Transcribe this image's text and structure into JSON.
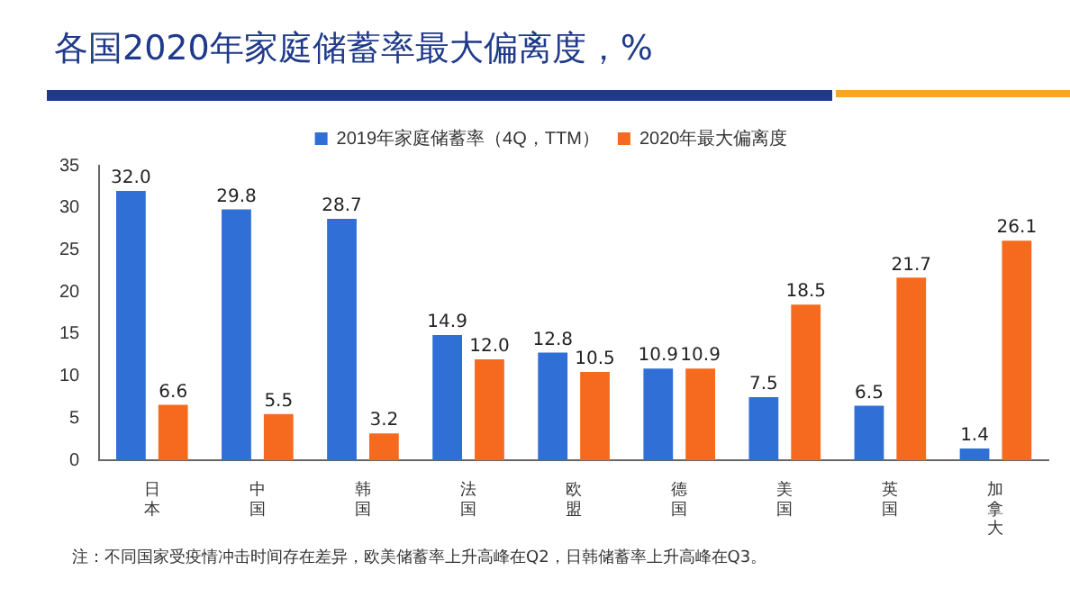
{
  "chart_data": {
    "type": "bar",
    "title": "各国2020年家庭储蓄率最大偏离度，%",
    "categories": [
      "日本",
      "中国",
      "韩国",
      "法国",
      "欧盟",
      "德国",
      "美国",
      "英国",
      "加拿大"
    ],
    "series": [
      {
        "name": "2019年家庭储蓄率（4Q，TTM）",
        "color": "#2f6fd6",
        "values": [
          32.0,
          29.8,
          28.7,
          14.9,
          12.8,
          10.9,
          7.5,
          6.5,
          1.4
        ],
        "value_labels": [
          "32.0",
          "29.8",
          "28.7",
          "14.9",
          "12.8",
          "10.9",
          "7.5",
          "6.5",
          "1.4"
        ]
      },
      {
        "name": "2020年最大偏离度",
        "color": "#f56a1f",
        "values": [
          6.6,
          5.5,
          3.2,
          12.0,
          10.5,
          10.9,
          18.5,
          21.7,
          26.1
        ],
        "value_labels": [
          "6.6",
          "5.5",
          "3.2",
          "12.0",
          "10.5",
          "10.9",
          "18.5",
          "21.7",
          "26.1"
        ]
      }
    ],
    "ylim": [
      0,
      35
    ],
    "yticks": [
      0,
      5,
      10,
      15,
      20,
      25,
      30,
      35
    ],
    "grid": false,
    "legend": "top",
    "annotations": [
      "注：不同国家受疫情冲击时间存在差异，欧美储蓄率上升高峰在Q2，日韩储蓄率上升高峰在Q3。"
    ]
  }
}
